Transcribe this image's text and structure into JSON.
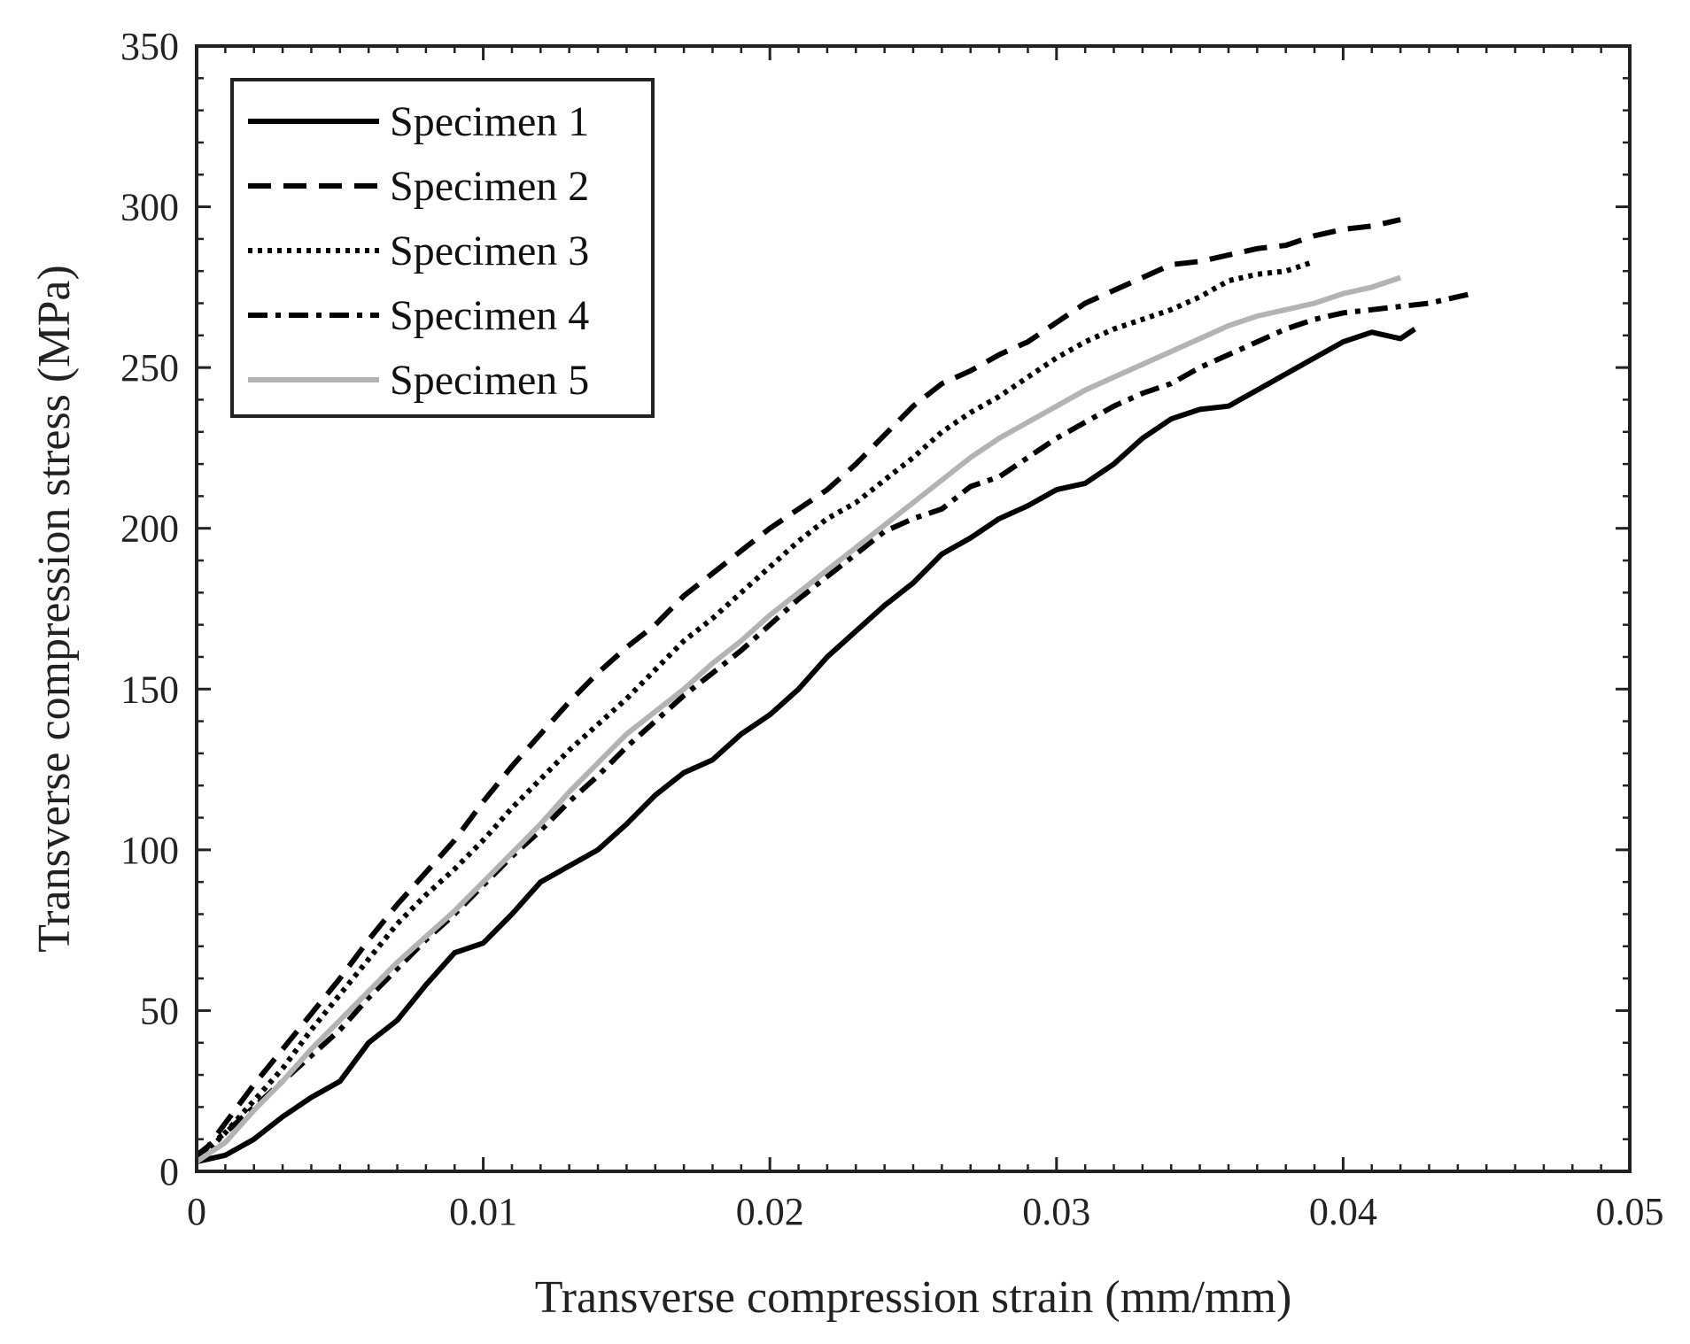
{
  "chart_data": {
    "type": "line",
    "title": "",
    "xlabel": "Transverse compression strain (mm/mm)",
    "ylabel": "Transverse compression stress (MPa)",
    "xlim": [
      0,
      0.05
    ],
    "ylim": [
      0,
      350
    ],
    "xticks": [
      0,
      0.01,
      0.02,
      0.03,
      0.04,
      0.05
    ],
    "xtick_labels": [
      "0",
      "0.01",
      "0.02",
      "0.03",
      "0.04",
      "0.05"
    ],
    "yticks": [
      0,
      50,
      100,
      150,
      200,
      250,
      300,
      350
    ],
    "ytick_labels": [
      "0",
      "50",
      "100",
      "150",
      "200",
      "250",
      "300",
      "350"
    ],
    "grid": false,
    "legend_position": "top-left",
    "series": [
      {
        "name": "Specimen 1",
        "style": "solid",
        "color": "#000000",
        "x": [
          0,
          0.001,
          0.002,
          0.003,
          0.004,
          0.005,
          0.006,
          0.007,
          0.008,
          0.009,
          0.01,
          0.011,
          0.012,
          0.013,
          0.014,
          0.015,
          0.016,
          0.017,
          0.018,
          0.019,
          0.02,
          0.021,
          0.022,
          0.023,
          0.024,
          0.025,
          0.026,
          0.027,
          0.028,
          0.029,
          0.03,
          0.031,
          0.032,
          0.033,
          0.034,
          0.035,
          0.036,
          0.037,
          0.038,
          0.039,
          0.04,
          0.041,
          0.042,
          0.0425
        ],
        "y": [
          3,
          5,
          10,
          17,
          23,
          28,
          40,
          47,
          58,
          68,
          71,
          80,
          90,
          95,
          100,
          108,
          117,
          124,
          128,
          136,
          142,
          150,
          160,
          168,
          176,
          183,
          192,
          197,
          203,
          207,
          212,
          214,
          220,
          228,
          234,
          237,
          238,
          243,
          248,
          253,
          258,
          261,
          259,
          262
        ]
      },
      {
        "name": "Specimen 2",
        "style": "dashed",
        "color": "#000000",
        "x": [
          0,
          0.001,
          0.002,
          0.003,
          0.004,
          0.005,
          0.006,
          0.007,
          0.008,
          0.009,
          0.01,
          0.011,
          0.012,
          0.013,
          0.014,
          0.015,
          0.016,
          0.017,
          0.018,
          0.019,
          0.02,
          0.021,
          0.022,
          0.023,
          0.024,
          0.025,
          0.026,
          0.027,
          0.028,
          0.029,
          0.03,
          0.031,
          0.032,
          0.033,
          0.034,
          0.035,
          0.036,
          0.037,
          0.038,
          0.039,
          0.04,
          0.041,
          0.042
        ],
        "y": [
          3,
          15,
          27,
          38,
          49,
          60,
          72,
          83,
          93,
          103,
          115,
          126,
          136,
          146,
          155,
          163,
          170,
          179,
          186,
          193,
          200,
          206,
          212,
          220,
          229,
          238,
          245,
          249,
          254,
          258,
          264,
          270,
          274,
          278,
          282,
          283,
          285,
          287,
          288,
          291,
          293,
          294,
          296
        ]
      },
      {
        "name": "Specimen 3",
        "style": "dotted",
        "color": "#000000",
        "x": [
          0,
          0.001,
          0.002,
          0.003,
          0.004,
          0.005,
          0.006,
          0.007,
          0.008,
          0.009,
          0.01,
          0.011,
          0.012,
          0.013,
          0.014,
          0.015,
          0.016,
          0.017,
          0.018,
          0.019,
          0.02,
          0.021,
          0.022,
          0.023,
          0.024,
          0.025,
          0.026,
          0.027,
          0.028,
          0.029,
          0.03,
          0.031,
          0.032,
          0.033,
          0.034,
          0.035,
          0.036,
          0.037,
          0.038,
          0.039
        ],
        "y": [
          3,
          12,
          22,
          32,
          44,
          55,
          66,
          77,
          86,
          94,
          103,
          113,
          122,
          131,
          139,
          147,
          156,
          165,
          172,
          180,
          188,
          196,
          203,
          208,
          215,
          222,
          230,
          236,
          241,
          247,
          253,
          258,
          262,
          265,
          268,
          272,
          277,
          279,
          280,
          283
        ]
      },
      {
        "name": "Specimen 4",
        "style": "dashdot",
        "color": "#000000",
        "x": [
          0,
          0.001,
          0.002,
          0.003,
          0.004,
          0.005,
          0.006,
          0.007,
          0.008,
          0.009,
          0.01,
          0.011,
          0.012,
          0.013,
          0.014,
          0.015,
          0.016,
          0.017,
          0.018,
          0.019,
          0.02,
          0.021,
          0.022,
          0.023,
          0.024,
          0.025,
          0.026,
          0.027,
          0.028,
          0.029,
          0.03,
          0.031,
          0.032,
          0.033,
          0.034,
          0.035,
          0.036,
          0.037,
          0.038,
          0.039,
          0.04,
          0.041,
          0.042,
          0.043,
          0.0445
        ],
        "y": [
          5,
          12,
          20,
          28,
          36,
          44,
          54,
          63,
          72,
          80,
          89,
          98,
          106,
          115,
          123,
          132,
          140,
          148,
          155,
          162,
          170,
          178,
          185,
          192,
          199,
          203,
          206,
          213,
          216,
          222,
          228,
          233,
          238,
          242,
          245,
          250,
          254,
          258,
          262,
          265,
          267,
          268,
          269,
          270,
          273
        ]
      },
      {
        "name": "Specimen 5",
        "style": "solid",
        "color": "#b3b3b3",
        "x": [
          0,
          0.001,
          0.002,
          0.003,
          0.004,
          0.005,
          0.006,
          0.007,
          0.008,
          0.009,
          0.01,
          0.011,
          0.012,
          0.013,
          0.014,
          0.015,
          0.016,
          0.017,
          0.018,
          0.019,
          0.02,
          0.021,
          0.022,
          0.023,
          0.024,
          0.025,
          0.026,
          0.027,
          0.028,
          0.029,
          0.03,
          0.031,
          0.032,
          0.033,
          0.034,
          0.035,
          0.036,
          0.037,
          0.038,
          0.039,
          0.04,
          0.041,
          0.042
        ],
        "y": [
          3,
          9,
          19,
          28,
          38,
          47,
          56,
          65,
          73,
          81,
          90,
          99,
          108,
          118,
          127,
          136,
          143,
          150,
          158,
          165,
          173,
          180,
          187,
          194,
          201,
          208,
          215,
          222,
          228,
          233,
          238,
          243,
          247,
          251,
          255,
          259,
          263,
          266,
          268,
          270,
          273,
          275,
          278
        ]
      }
    ]
  }
}
